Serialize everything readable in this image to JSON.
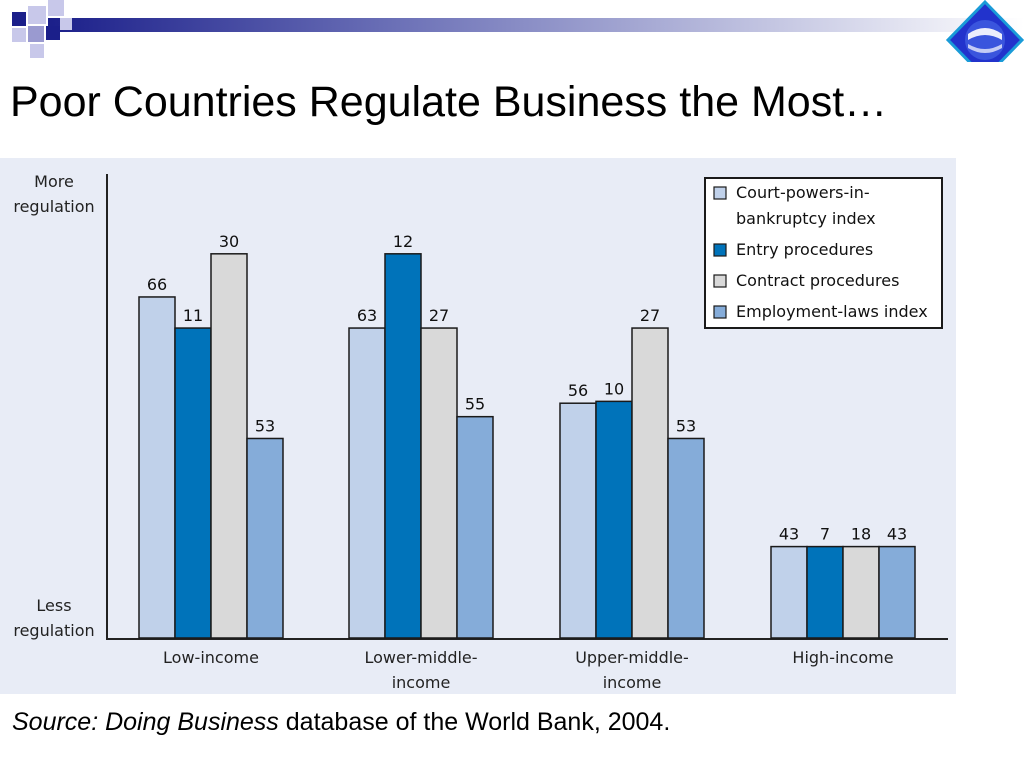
{
  "slide": {
    "title": "Poor Countries Regulate Business the Most…",
    "source_italic": "Source: Doing Business",
    "source_rest": " database of the World Bank, 2004."
  },
  "axis": {
    "top_line1": "More",
    "top_line2": "regulation",
    "bottom_line1": "Less",
    "bottom_line2": "regulation"
  },
  "chart_data": {
    "type": "bar",
    "categories": [
      [
        "Low-income"
      ],
      [
        "Lower-middle-",
        "income"
      ],
      [
        "Upper-middle-",
        "income"
      ],
      [
        "High-income"
      ]
    ],
    "series": [
      {
        "name": "Court-powers-in-bankruptcy index",
        "legend_lines": [
          "Court-powers-in-",
          "bankruptcy index"
        ],
        "color": "#c0d1ea",
        "values": [
          66,
          63,
          56,
          43
        ],
        "heights": [
          0.735,
          0.668,
          0.506,
          0.197
        ]
      },
      {
        "name": "Entry procedures",
        "legend_lines": [
          "Entry procedures"
        ],
        "color": "#0073ba",
        "values": [
          11,
          12,
          10,
          7
        ],
        "heights": [
          0.668,
          0.828,
          0.51,
          0.197
        ]
      },
      {
        "name": "Contract procedures",
        "legend_lines": [
          "Contract procedures"
        ],
        "color": "#d9d9d9",
        "values": [
          30,
          27,
          27,
          18
        ],
        "heights": [
          0.828,
          0.668,
          0.668,
          0.197
        ]
      },
      {
        "name": "Employment-laws index",
        "legend_lines": [
          "Employment-laws index"
        ],
        "color": "#85acd9",
        "values": [
          53,
          55,
          53,
          43
        ],
        "heights": [
          0.43,
          0.477,
          0.43,
          0.197
        ]
      }
    ],
    "axis_scale": "relative regulation (less to more), not numeric",
    "legend_position": "top-right",
    "grid": false
  },
  "colors": {
    "title_bar_gradient_start": "#1b1f8a",
    "title_bar_gradient_end": "#ffffff",
    "panel_background": "#e8ecf6",
    "logo_blue": "#2233cc"
  },
  "icons": {
    "corner_squares": "decorative-squares-icon",
    "logo": "blue-diamond-logo-icon"
  }
}
